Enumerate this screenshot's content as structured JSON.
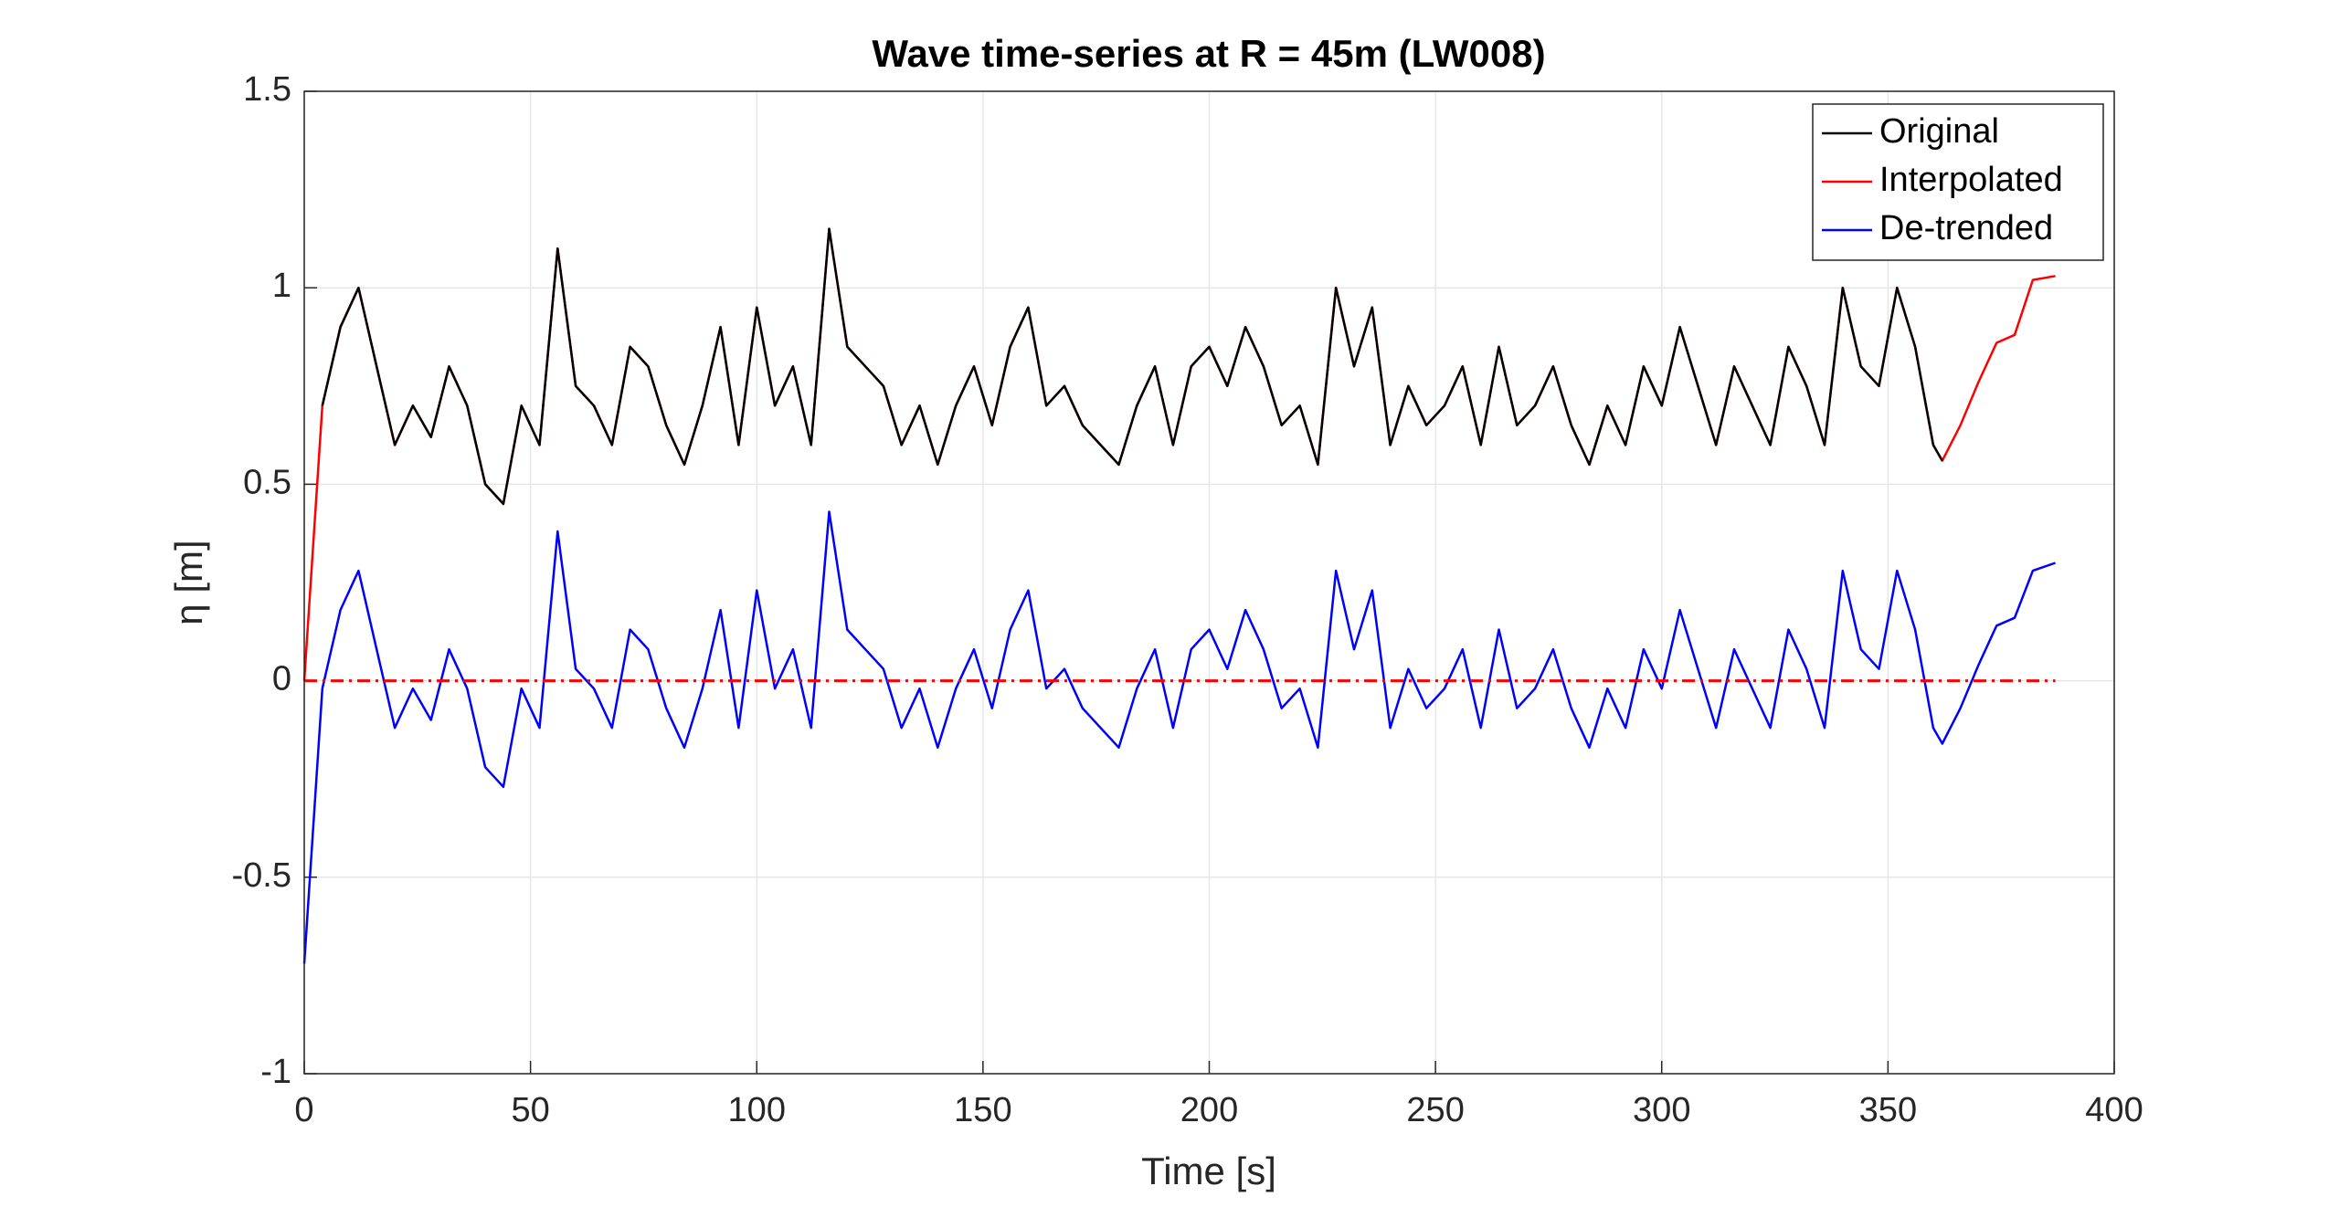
{
  "chart_data": {
    "type": "line",
    "title": "Wave time-series at R = 45m (LW008)",
    "xlabel": "Time [s]",
    "ylabel": "η [m]",
    "x": [
      0,
      4,
      8,
      12,
      16,
      20,
      24,
      28,
      32,
      36,
      40,
      44,
      48,
      52,
      56,
      60,
      64,
      68,
      72,
      76,
      80,
      84,
      88,
      92,
      96,
      100,
      104,
      108,
      112,
      116,
      120,
      124,
      128,
      132,
      136,
      140,
      144,
      148,
      152,
      156,
      160,
      164,
      168,
      172,
      176,
      180,
      184,
      188,
      192,
      196,
      200,
      204,
      208,
      212,
      216,
      220,
      224,
      228,
      232,
      236,
      240,
      244,
      248,
      252,
      256,
      260,
      264,
      268,
      272,
      276,
      280,
      284,
      288,
      292,
      296,
      300,
      304,
      308,
      312,
      316,
      320,
      324,
      328,
      332,
      336,
      340,
      344,
      348,
      352,
      356,
      360,
      362,
      366,
      370,
      374,
      378,
      382,
      387
    ],
    "series": [
      {
        "name": "Interpolated",
        "color": "#ff0000",
        "values": [
          0,
          0.7,
          0.9,
          1.0,
          0.8,
          0.6,
          0.7,
          0.62,
          0.8,
          0.7,
          0.5,
          0.45,
          0.7,
          0.6,
          1.1,
          0.75,
          0.7,
          0.6,
          0.85,
          0.8,
          0.65,
          0.55,
          0.7,
          0.9,
          0.6,
          0.95,
          0.7,
          0.8,
          0.6,
          1.15,
          0.85,
          0.8,
          0.75,
          0.6,
          0.7,
          0.55,
          0.7,
          0.8,
          0.65,
          0.85,
          0.95,
          0.7,
          0.75,
          0.65,
          0.6,
          0.55,
          0.7,
          0.8,
          0.6,
          0.8,
          0.85,
          0.75,
          0.9,
          0.8,
          0.65,
          0.7,
          0.55,
          1.0,
          0.8,
          0.95,
          0.6,
          0.75,
          0.65,
          0.7,
          0.8,
          0.6,
          0.85,
          0.65,
          0.7,
          0.8,
          0.65,
          0.55,
          0.7,
          0.6,
          0.8,
          0.7,
          0.9,
          0.75,
          0.6,
          0.8,
          0.7,
          0.6,
          0.85,
          0.75,
          0.6,
          1.0,
          0.8,
          0.75,
          1.0,
          0.85,
          0.6,
          0.56,
          0.65,
          0.76,
          0.86,
          0.88,
          1.02,
          1.03
        ]
      },
      {
        "name": "Original",
        "color": "#000000",
        "values": [
          null,
          0.7,
          0.9,
          1.0,
          0.8,
          0.6,
          0.7,
          0.62,
          0.8,
          0.7,
          0.5,
          0.45,
          0.7,
          0.6,
          1.1,
          0.75,
          0.7,
          0.6,
          0.85,
          0.8,
          0.65,
          0.55,
          0.7,
          0.9,
          0.6,
          0.95,
          0.7,
          0.8,
          0.6,
          1.15,
          0.85,
          0.8,
          0.75,
          0.6,
          0.7,
          0.55,
          0.7,
          0.8,
          0.65,
          0.85,
          0.95,
          0.7,
          0.75,
          0.65,
          0.6,
          0.55,
          0.7,
          0.8,
          0.6,
          0.8,
          0.85,
          0.75,
          0.9,
          0.8,
          0.65,
          0.7,
          0.55,
          1.0,
          0.8,
          0.95,
          0.6,
          0.75,
          0.65,
          0.7,
          0.8,
          0.6,
          0.85,
          0.65,
          0.7,
          0.8,
          0.65,
          0.55,
          0.7,
          0.6,
          0.8,
          0.7,
          0.9,
          0.75,
          0.6,
          0.8,
          0.7,
          0.6,
          0.85,
          0.75,
          0.6,
          1.0,
          0.8,
          0.75,
          1.0,
          0.85,
          0.6,
          0.56,
          null,
          null,
          null,
          null,
          null,
          null
        ]
      },
      {
        "name": "De-trended",
        "color": "#0000ff",
        "values": [
          -0.72,
          -0.02,
          0.18,
          0.28,
          0.08,
          -0.12,
          -0.02,
          -0.1,
          0.08,
          -0.02,
          -0.22,
          -0.27,
          -0.02,
          -0.12,
          0.38,
          0.03,
          -0.02,
          -0.12,
          0.13,
          0.08,
          -0.07,
          -0.17,
          -0.02,
          0.18,
          -0.12,
          0.23,
          -0.02,
          0.08,
          -0.12,
          0.43,
          0.13,
          0.08,
          0.03,
          -0.12,
          -0.02,
          -0.17,
          -0.02,
          0.08,
          -0.07,
          0.13,
          0.23,
          -0.02,
          0.03,
          -0.07,
          -0.12,
          -0.17,
          -0.02,
          0.08,
          -0.12,
          0.08,
          0.13,
          0.03,
          0.18,
          0.08,
          -0.07,
          -0.02,
          -0.17,
          0.28,
          0.08,
          0.23,
          -0.12,
          0.03,
          -0.07,
          -0.02,
          0.08,
          -0.12,
          0.13,
          -0.07,
          -0.02,
          0.08,
          -0.07,
          -0.17,
          -0.02,
          -0.12,
          0.08,
          -0.02,
          0.18,
          0.03,
          -0.12,
          0.08,
          -0.02,
          -0.12,
          0.13,
          0.03,
          -0.12,
          0.28,
          0.08,
          0.03,
          0.28,
          0.13,
          -0.12,
          -0.16,
          -0.07,
          0.04,
          0.14,
          0.16,
          0.28,
          0.3
        ]
      }
    ],
    "legend_order": [
      1,
      0,
      2
    ],
    "reference_line": {
      "y": 0,
      "x": [
        0,
        387
      ],
      "color": "#ff0000"
    },
    "xlim": [
      0,
      400
    ],
    "xticks": [
      0,
      50,
      100,
      150,
      200,
      250,
      300,
      350,
      400
    ],
    "ylim": [
      -1,
      1.5
    ],
    "yticks": [
      -1,
      -0.5,
      0,
      0.5,
      1,
      1.5
    ],
    "grid": true,
    "legend": "northeast"
  }
}
